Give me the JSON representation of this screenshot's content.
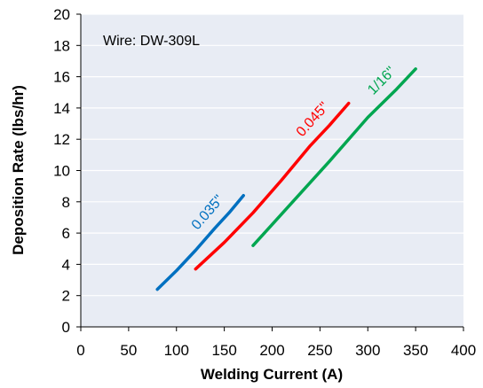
{
  "chart_data": {
    "type": "line",
    "title": "",
    "xlabel": "Welding Current (A)",
    "ylabel": "Deposition Rate (lbs/hr)",
    "xlim": [
      0,
      400
    ],
    "ylim": [
      0,
      20
    ],
    "xticks": [
      0,
      50,
      100,
      150,
      200,
      250,
      300,
      350,
      400
    ],
    "yticks": [
      0,
      2,
      4,
      6,
      8,
      10,
      12,
      14,
      16,
      18,
      20
    ],
    "grid": "y",
    "annotation": "Wire: DW-309L",
    "series": [
      {
        "name": "0.035\"",
        "color": "#0070c0",
        "points": [
          [
            80,
            2.4
          ],
          [
            100,
            3.6
          ],
          [
            120,
            4.9
          ],
          [
            140,
            6.3
          ],
          [
            155,
            7.3
          ],
          [
            170,
            8.4
          ]
        ]
      },
      {
        "name": "0.045\"",
        "color": "#ff0000",
        "points": [
          [
            120,
            3.7
          ],
          [
            150,
            5.4
          ],
          [
            180,
            7.3
          ],
          [
            210,
            9.4
          ],
          [
            240,
            11.6
          ],
          [
            260,
            12.9
          ],
          [
            280,
            14.3
          ]
        ]
      },
      {
        "name": "1/16\"",
        "color": "#00a650",
        "points": [
          [
            180,
            5.2
          ],
          [
            220,
            7.9
          ],
          [
            260,
            10.6
          ],
          [
            300,
            13.4
          ],
          [
            330,
            15.2
          ],
          [
            350,
            16.5
          ]
        ]
      }
    ]
  }
}
